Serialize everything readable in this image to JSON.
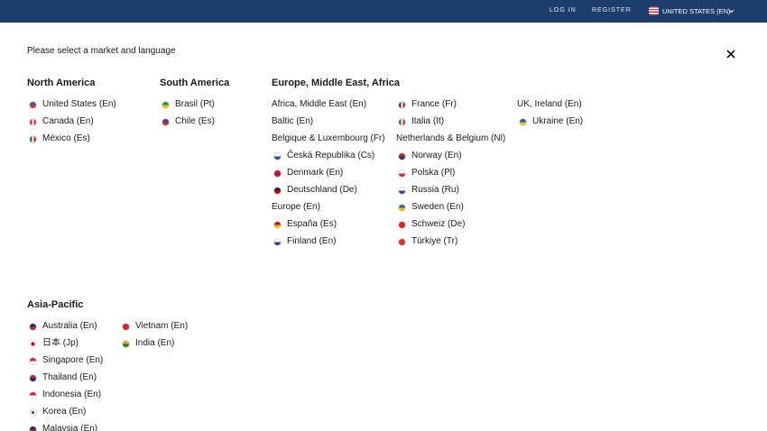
{
  "nav": {
    "login": "LOG IN",
    "register": "REGISTER",
    "locale": "UNITED STATES (EN)"
  },
  "prompt": "Please select a market and language",
  "regions": [
    {
      "title": "North America",
      "columns": [
        [
          "United States (En)",
          "Canada (En)",
          "México (Es)"
        ]
      ]
    },
    {
      "title": "South America",
      "columns": [
        [
          "Brasil (Pt)",
          "Chile (Es)"
        ]
      ]
    },
    {
      "title": "Europe, Middle East, Africa",
      "columns": [
        [
          "Africa, Middle East (En)",
          "Baltic (En)",
          "Belgique & Luxembourg (Fr)",
          "Česká Republika (Cs)",
          "Denmark (En)",
          "Deutschland (De)",
          "Europe (En)",
          "España (Es)",
          "Finland (En)"
        ],
        [
          "France (Fr)",
          "Italia (It)",
          "Netherlands & Belgium (Nl)",
          "Norway (En)",
          "Polska (Pl)",
          "Russia (Ru)",
          "Sweden (En)",
          "Schweiz (De)",
          "Türkiye (Tr)"
        ],
        [
          "UK, Ireland (En)",
          "Ukraine (En)"
        ]
      ]
    },
    {
      "title": "Asia-Pacific",
      "columns": [
        [
          "Australia (En)",
          "日本 (Jp)",
          "Singapore (En)",
          "Thailand (En)",
          "Indonesia (En)",
          "Korea (En)",
          "Malaysia (En)"
        ],
        [
          "Vietnam (En)",
          "India (En)"
        ]
      ]
    }
  ]
}
